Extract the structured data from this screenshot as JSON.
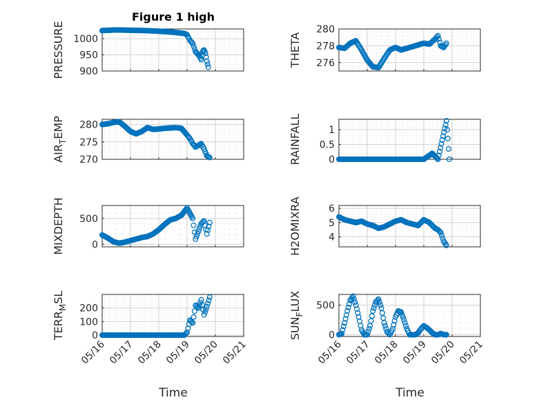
{
  "figure": {
    "title": "Figure 1 high",
    "xlabel": "Time"
  },
  "colors": {
    "marker": "#0072BD",
    "axis": "#262626",
    "grid": "#d9d9d9",
    "background": "#ffffff"
  },
  "chart_data": [
    {
      "type": "scatter",
      "ylabel": "PRESSURE",
      "xlim": [
        "05/16",
        "05/21"
      ],
      "ylim": [
        900,
        1030
      ],
      "yticks": [
        900,
        950,
        1000
      ],
      "grid": true,
      "x_days": [
        0.0,
        0.5,
        1.0,
        1.5,
        2.0,
        2.5,
        2.9,
        3.0,
        3.1,
        3.2,
        3.3,
        3.45,
        3.5,
        3.55,
        3.6,
        3.65,
        3.7,
        3.75
      ],
      "series": [
        {
          "values": [
            1025,
            1027,
            1026,
            1025,
            1023,
            1020,
            1016,
            1012,
            995,
            985,
            960,
            945,
            935,
            960,
            965,
            955,
            930,
            912
          ]
        }
      ]
    },
    {
      "type": "scatter",
      "ylabel": "THETA",
      "xlim": [
        "05/16",
        "05/21"
      ],
      "ylim": [
        275,
        280
      ],
      "yticks": [
        276,
        278,
        280
      ],
      "grid": true,
      "x_days": [
        0.0,
        0.2,
        0.4,
        0.6,
        0.8,
        1.0,
        1.2,
        1.4,
        1.6,
        1.8,
        2.0,
        2.2,
        2.4,
        2.6,
        2.8,
        3.0,
        3.2,
        3.4,
        3.5,
        3.6,
        3.7,
        3.8
      ],
      "series": [
        {
          "values": [
            277.8,
            277.7,
            278.3,
            278.6,
            277.5,
            276.3,
            275.5,
            275.4,
            276.5,
            277.5,
            277.8,
            277.5,
            277.7,
            277.9,
            278.1,
            278.3,
            278.2,
            278.8,
            279.2,
            278.0,
            277.8,
            278.3
          ]
        }
      ]
    },
    {
      "type": "scatter",
      "ylabel": "AIR_TEMP",
      "xlim": [
        "05/16",
        "05/21"
      ],
      "ylim": [
        270,
        281.5
      ],
      "yticks": [
        270,
        275,
        280
      ],
      "grid": true,
      "x_days": [
        0.0,
        0.2,
        0.4,
        0.6,
        0.8,
        1.0,
        1.2,
        1.4,
        1.6,
        1.8,
        2.0,
        2.2,
        2.4,
        2.6,
        2.8,
        3.0,
        3.1,
        3.2,
        3.3,
        3.4,
        3.5,
        3.6,
        3.7,
        3.8
      ],
      "series": [
        {
          "values": [
            280.0,
            280.2,
            280.6,
            280.8,
            279.5,
            278.0,
            277.3,
            278.0,
            279.1,
            278.6,
            278.7,
            278.9,
            279.0,
            279.1,
            278.9,
            277.0,
            276.0,
            274.5,
            273.5,
            274.0,
            274.5,
            273.0,
            271.0,
            270.5
          ]
        }
      ]
    },
    {
      "type": "scatter",
      "ylabel": "RAINFALL",
      "xlim": [
        "05/16",
        "05/21"
      ],
      "ylim": [
        0,
        1.35
      ],
      "yticks": [
        0,
        0.5,
        1
      ],
      "grid": true,
      "x_days": [
        0.0,
        0.5,
        1.0,
        1.5,
        2.0,
        2.5,
        3.0,
        3.3,
        3.5,
        3.8,
        3.85,
        3.9
      ],
      "series": [
        {
          "values": [
            0,
            0,
            0,
            0,
            0,
            0,
            0,
            0.2,
            0,
            1.3,
            0.7,
            0
          ]
        }
      ]
    },
    {
      "type": "scatter",
      "ylabel": "MIXDEPTH",
      "xlim": [
        "05/16",
        "05/21"
      ],
      "ylim": [
        -50,
        750
      ],
      "yticks": [
        0,
        500
      ],
      "grid": true,
      "x_days": [
        0.0,
        0.2,
        0.4,
        0.6,
        0.8,
        1.0,
        1.2,
        1.4,
        1.6,
        1.8,
        2.0,
        2.2,
        2.4,
        2.6,
        2.8,
        3.0,
        3.2,
        3.3,
        3.4,
        3.5,
        3.6,
        3.7,
        3.8
      ],
      "series": [
        {
          "values": [
            180,
            120,
            50,
            20,
            40,
            70,
            100,
            130,
            150,
            200,
            280,
            380,
            470,
            500,
            560,
            700,
            500,
            100,
            250,
            400,
            450,
            200,
            420
          ]
        }
      ]
    },
    {
      "type": "scatter",
      "ylabel": "H2OMIXRA",
      "xlim": [
        "05/16",
        "05/21"
      ],
      "ylim": [
        3.3,
        6.2
      ],
      "yticks": [
        4,
        5,
        6
      ],
      "grid": true,
      "x_days": [
        0.0,
        0.2,
        0.4,
        0.6,
        0.8,
        1.0,
        1.2,
        1.4,
        1.6,
        1.8,
        2.0,
        2.2,
        2.4,
        2.6,
        2.8,
        3.0,
        3.2,
        3.4,
        3.5,
        3.6,
        3.7,
        3.8
      ],
      "series": [
        {
          "values": [
            5.4,
            5.2,
            5.1,
            5.0,
            5.1,
            4.9,
            4.8,
            4.6,
            4.7,
            4.9,
            5.1,
            5.2,
            5.0,
            4.9,
            4.8,
            5.2,
            5.0,
            4.6,
            4.5,
            4.3,
            3.7,
            3.4
          ]
        }
      ]
    },
    {
      "type": "scatter",
      "ylabel": "TERR_MSL",
      "xlim": [
        "05/16",
        "05/21"
      ],
      "ylim": [
        -10,
        300
      ],
      "yticks": [
        0,
        100,
        200
      ],
      "grid": true,
      "x_days": [
        0.0,
        0.5,
        1.0,
        1.5,
        2.0,
        2.5,
        2.9,
        3.0,
        3.1,
        3.2,
        3.3,
        3.4,
        3.5,
        3.6,
        3.7,
        3.8
      ],
      "series": [
        {
          "values": [
            0,
            0,
            0,
            0,
            0,
            0,
            0,
            20,
            110,
            90,
            220,
            200,
            260,
            150,
            210,
            280
          ]
        }
      ]
    },
    {
      "type": "scatter",
      "ylabel": "SUN_FLUX",
      "xlim": [
        "05/16",
        "05/21"
      ],
      "ylim": [
        -30,
        680
      ],
      "yticks": [
        0,
        500
      ],
      "grid": true,
      "x_days": [
        0.0,
        0.1,
        0.2,
        0.3,
        0.4,
        0.5,
        0.6,
        0.7,
        0.8,
        0.9,
        1.0,
        1.1,
        1.2,
        1.3,
        1.4,
        1.5,
        1.6,
        1.7,
        1.8,
        1.9,
        2.0,
        2.1,
        2.2,
        2.3,
        2.4,
        2.5,
        2.6,
        2.7,
        2.8,
        2.9,
        3.0,
        3.1,
        3.2,
        3.3,
        3.4,
        3.5,
        3.6,
        3.7,
        3.8
      ],
      "series": [
        {
          "values": [
            0,
            20,
            200,
            400,
            580,
            650,
            500,
            300,
            80,
            0,
            0,
            150,
            400,
            550,
            600,
            450,
            200,
            50,
            0,
            100,
            300,
            400,
            380,
            250,
            100,
            0,
            0,
            0,
            30,
            100,
            150,
            120,
            80,
            30,
            0,
            0,
            20,
            0,
            0
          ]
        }
      ]
    }
  ]
}
